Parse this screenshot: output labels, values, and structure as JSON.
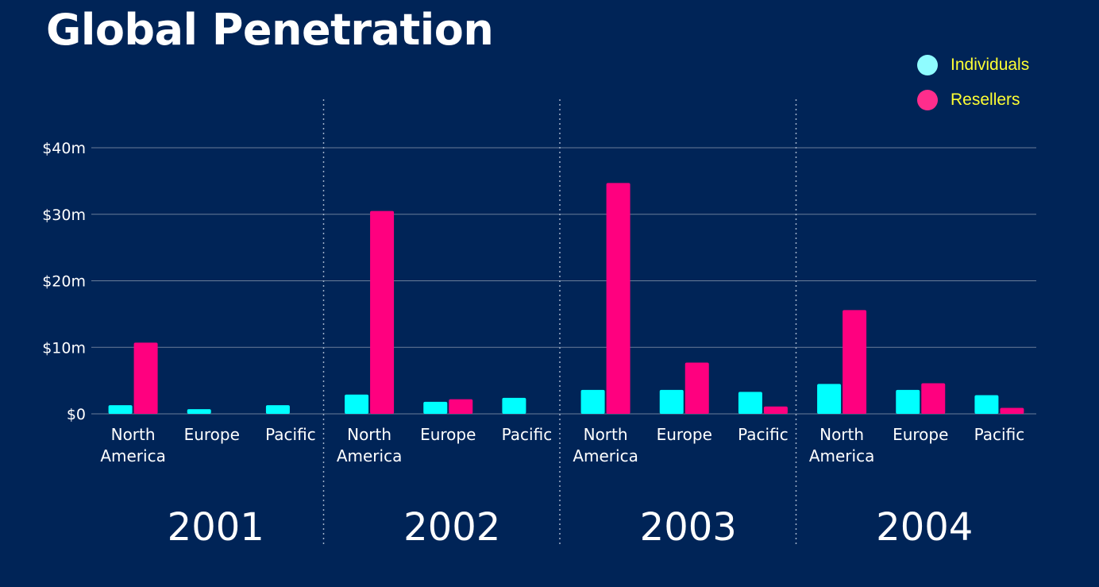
{
  "title": "Global Penetration",
  "colors": {
    "background": "#002457",
    "individuals": "#00ffff",
    "resellers": "#ff007f",
    "legend_individuals": "#8ffcff",
    "legend_resellers": "#ff2d8c",
    "legend_text": "#ffff33",
    "grid": "#6a7d99",
    "text": "#ffffff"
  },
  "legend": [
    {
      "label": "Individuals",
      "color_key": "legend_individuals"
    },
    {
      "label": "Resellers",
      "color_key": "legend_resellers"
    }
  ],
  "chart_data": {
    "type": "bar",
    "title": "Global Penetration",
    "groups": [
      "2001",
      "2002",
      "2003",
      "2004"
    ],
    "categories": [
      "North America",
      "Europe",
      "Pacific"
    ],
    "category_labels": [
      [
        "North",
        "America"
      ],
      [
        "Europe"
      ],
      [
        "Pacific"
      ]
    ],
    "series": [
      {
        "name": "Individuals",
        "values": [
          [
            1.3,
            0.7,
            1.3
          ],
          [
            2.9,
            1.8,
            2.4
          ],
          [
            3.6,
            3.6,
            3.3
          ],
          [
            4.5,
            3.6,
            2.8
          ]
        ]
      },
      {
        "name": "Resellers",
        "values": [
          [
            10.7,
            0,
            0
          ],
          [
            30.5,
            2.2,
            0
          ],
          [
            34.7,
            7.7,
            1.1
          ],
          [
            15.6,
            4.6,
            0.9
          ]
        ]
      }
    ],
    "yticks": [
      0,
      10,
      20,
      30,
      40
    ],
    "ytick_labels": [
      "$0",
      "$10m",
      "$20m",
      "$30m",
      "$40m"
    ],
    "ylim": [
      0,
      40
    ],
    "xlabel": "",
    "ylabel": "",
    "grid": true,
    "legend_position": "top-right"
  }
}
